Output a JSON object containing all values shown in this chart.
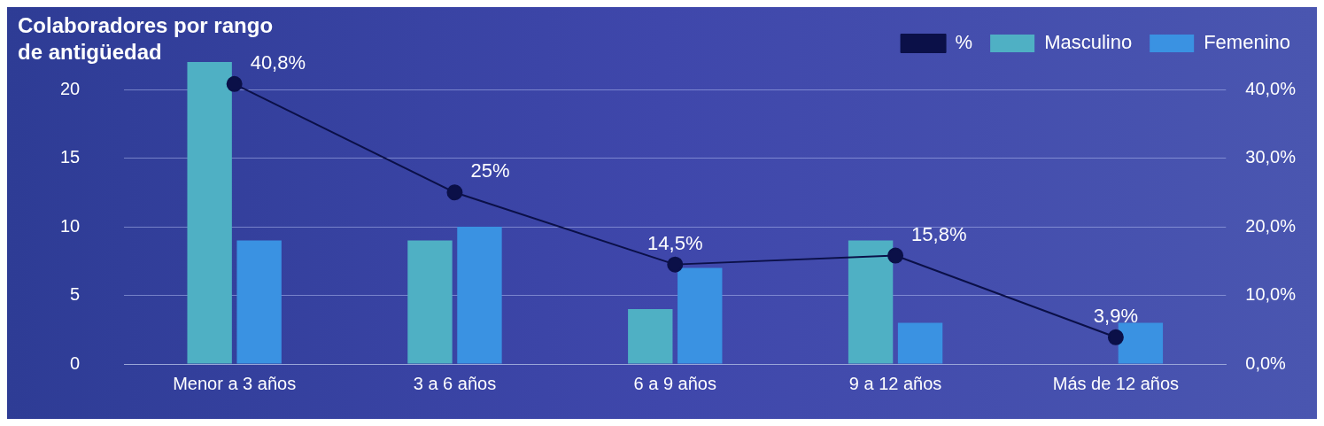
{
  "chart_data": {
    "type": "bar",
    "title": "Colaboradores por rango de antigüedad",
    "categories": [
      "Menor a 3 años",
      "3 a 6 años",
      "6 a 9 años",
      "9 a 12 años",
      "Más de 12 años"
    ],
    "series": [
      {
        "name": "Masculino",
        "color": "#4fb0c4",
        "values": [
          22,
          9,
          4,
          9,
          0
        ]
      },
      {
        "name": "Femenino",
        "color": "#3a92e2",
        "values": [
          9,
          10,
          7,
          3,
          3
        ]
      },
      {
        "name": "%",
        "type": "line",
        "axis": "y2",
        "color": "#0b1048",
        "values": [
          40.8,
          25,
          14.5,
          15.8,
          3.9
        ],
        "value_labels": [
          "40,8%",
          "25%",
          "14,5%",
          "15,8%",
          "3,9%"
        ]
      }
    ],
    "ylim": [
      0,
      22
    ],
    "yticks": [
      0,
      5,
      10,
      15,
      20
    ],
    "y2lim": [
      0,
      44
    ],
    "y2ticks": [
      {
        "value": 0,
        "label": "0,0%"
      },
      {
        "value": 10,
        "label": "10,0%"
      },
      {
        "value": 20,
        "label": "20,0%"
      },
      {
        "value": 30,
        "label": "30,0%"
      },
      {
        "value": 40,
        "label": "40,0%"
      }
    ],
    "grid": "y",
    "legend": "top right",
    "marker": "circle"
  }
}
